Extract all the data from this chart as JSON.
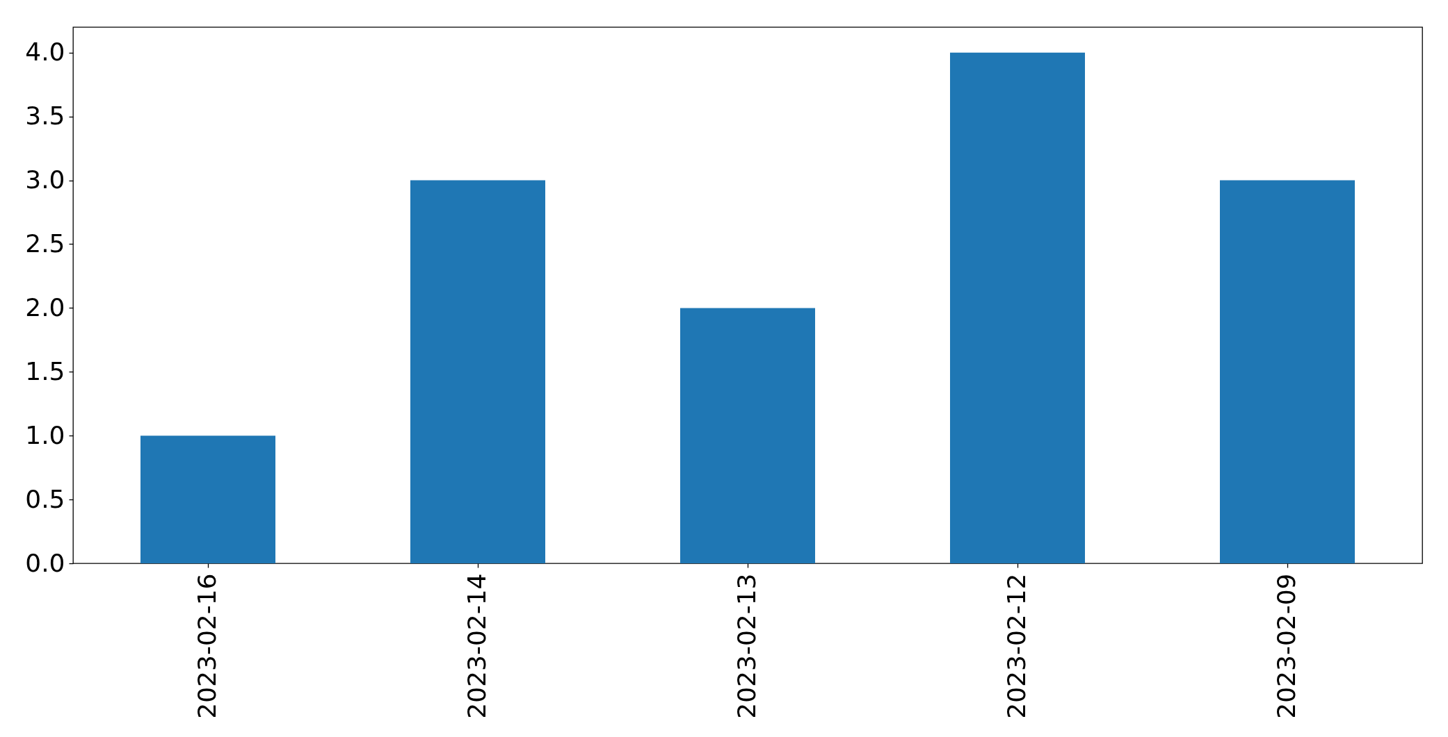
{
  "chart_data": {
    "type": "bar",
    "categories": [
      "2023-02-16",
      "2023-02-14",
      "2023-02-13",
      "2023-02-12",
      "2023-02-09"
    ],
    "values": [
      1,
      3,
      2,
      4,
      3
    ],
    "color": "#1f77b4",
    "ylim": [
      0,
      4.2
    ],
    "yticks": [
      {
        "value": 0,
        "label": "0.0"
      },
      {
        "value": 0.5,
        "label": "0.5"
      },
      {
        "value": 1,
        "label": "1.0"
      },
      {
        "value": 1.5,
        "label": "1.5"
      },
      {
        "value": 2,
        "label": "2.0"
      },
      {
        "value": 2.5,
        "label": "2.5"
      },
      {
        "value": 3,
        "label": "3.0"
      },
      {
        "value": 3.5,
        "label": "3.5"
      },
      {
        "value": 4,
        "label": "4.0"
      }
    ],
    "grid": false
  }
}
